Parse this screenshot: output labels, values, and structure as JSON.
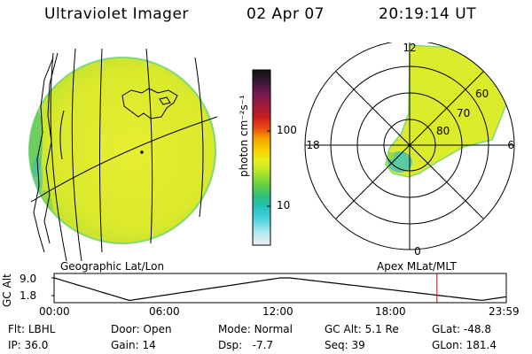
{
  "header": {
    "instrument": "Ultraviolet Imager",
    "date": "02 Apr 07",
    "time": "20:19:14 UT"
  },
  "left_panel": {
    "label": "Geographic Lat/Lon"
  },
  "right_panel": {
    "label": "Apex MLat/MLT",
    "mlt_labels": [
      "12",
      "18",
      "6",
      "0"
    ],
    "mlat_labels": [
      "60",
      "70",
      "80"
    ]
  },
  "colorbar": {
    "unit_label": "photon cm⁻²s⁻¹",
    "tick_labels": [
      "100",
      "10"
    ],
    "colors": [
      "#111111",
      "#3a1636",
      "#7a1a52",
      "#a01a3a",
      "#c81e1e",
      "#e84a10",
      "#f5a000",
      "#f8d000",
      "#e6f020",
      "#b6e62a",
      "#6cd23c",
      "#2ec07a",
      "#24c0b8",
      "#4cd2e0",
      "#a6e6ee",
      "#f0f0f0"
    ]
  },
  "altitude_plot": {
    "ylabel": "GC Alt",
    "y_ticks": [
      "9.0",
      "1.8"
    ],
    "x_ticks": [
      "00:00",
      "06:00",
      "12:00",
      "18:00",
      "23:59"
    ],
    "current_marker_hour": 20.32,
    "curve_color": "#000000",
    "marker_color": "#cc0000"
  },
  "info": {
    "row1": [
      {
        "label": "Flt:",
        "value": "LBHL"
      },
      {
        "label": "Door:",
        "value": "Open"
      },
      {
        "label": "Mode:",
        "value": "Normal"
      },
      {
        "label": "GC Alt:",
        "value": "5.1 Re"
      },
      {
        "label": "GLat:",
        "value": "-48.8"
      }
    ],
    "row2": [
      {
        "label": "IP:",
        "value": "36.0"
      },
      {
        "label": "Gain:",
        "value": "14"
      },
      {
        "label": "Dsp:",
        "value": "-7.7"
      },
      {
        "label": "Seq:",
        "value": "39"
      },
      {
        "label": "GLon:",
        "value": "181.4"
      }
    ]
  },
  "image_color": "#dcec2c"
}
